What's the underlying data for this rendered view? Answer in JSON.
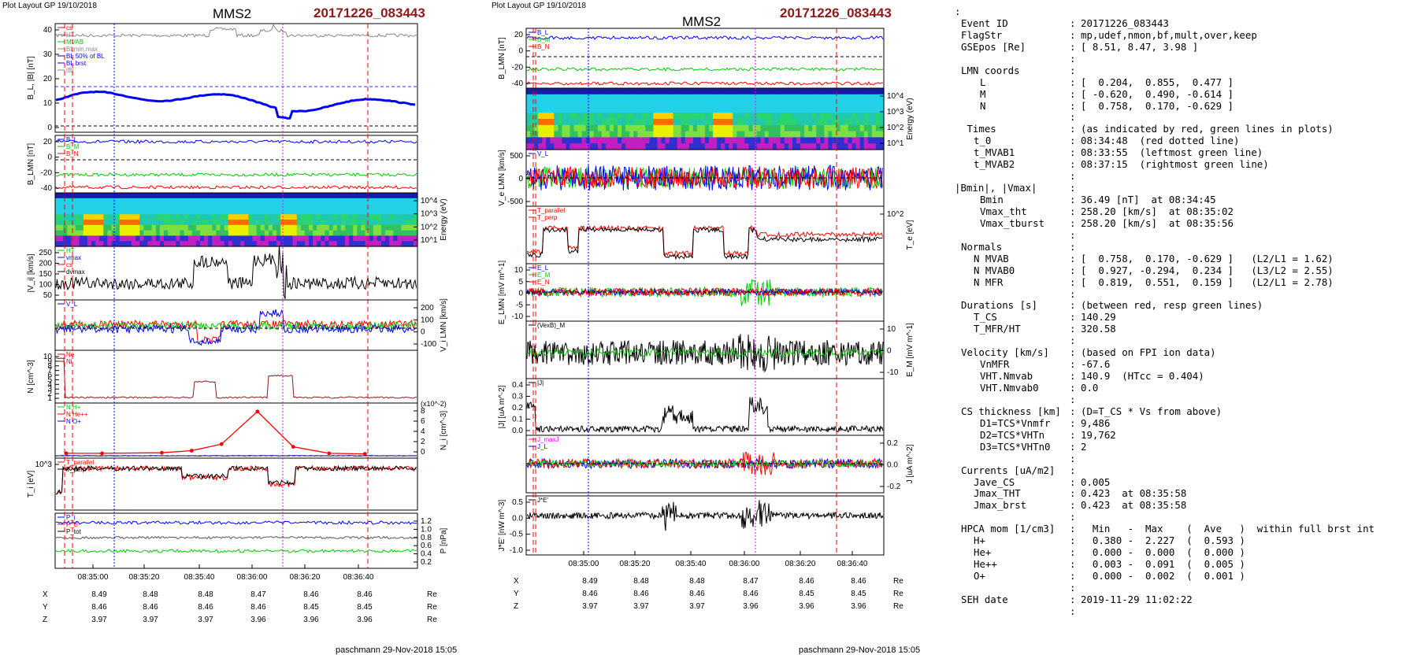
{
  "page": {
    "headers": [
      "Plot Layout GP 19/10/2018",
      "Plot Layout GP 19/10/2018"
    ],
    "spacecraft": "MMS2",
    "event_title": "20171226_083443",
    "footer": "paschmann 29-Nov-2018 15:05",
    "colors": {
      "event": "#8b1a1a",
      "red": "#ff0000",
      "green": "#00cc00",
      "blue": "#0000ff",
      "magenta": "#ff00ff",
      "grey": "#888888"
    }
  },
  "time_axis": {
    "ticks": [
      "08:35:00",
      "08:35:20",
      "08:35:40",
      "08:36:00",
      "08:36:20",
      "08:36:40"
    ],
    "orbit": {
      "labels": [
        "X",
        "Y",
        "Z"
      ],
      "unit": "Re",
      "X": [
        "8.49",
        "8.48",
        "8.48",
        "8.47",
        "8.46",
        "8.46"
      ],
      "Y": [
        "8.46",
        "8.46",
        "8.46",
        "8.46",
        "8.45",
        "8.45"
      ],
      "Z": [
        "3.97",
        "3.97",
        "3.97",
        "3.96",
        "3.96",
        "3.96"
      ]
    }
  },
  "chart_data": [
    {
      "type": "line",
      "panel": "left",
      "rows": [
        {
          "ylabel": "B_L, |B| [nT]",
          "yticks": [
            "40",
            "30",
            "20",
            "10",
            "0"
          ],
          "legend": [
            "cs",
            "HT",
            "MVAB",
            "BLmin,max",
            "BL 50% of BL",
            "BL brst",
            "|B|"
          ],
          "ylim": [
            0,
            48
          ]
        },
        {
          "ylabel": "B_LMN [nT]",
          "yticks": [
            "20",
            "0",
            "-20",
            "-40"
          ],
          "legend": [
            "B_L",
            "B_M",
            "B_N"
          ],
          "ylim": [
            -40,
            25
          ]
        },
        {
          "type": "heatmap",
          "ylabel_right": "Energy (eV)",
          "yticks_right": [
            "10^4",
            "10^3",
            "10^2",
            "10^1"
          ]
        },
        {
          "ylabel": "|V_i| [km/s]",
          "yticks": [
            "250",
            "200",
            "150",
            "100",
            "50"
          ],
          "legend": [
            "HT",
            "vmax",
            "cs",
            "dvmax"
          ]
        },
        {
          "ylabel_right": "V_i LMN [km/s]",
          "yticks_right": [
            "200",
            "100",
            "0",
            "-100"
          ],
          "legend": [
            "V_L"
          ]
        },
        {
          "ylabel": "N [cm^-3]",
          "yticks": [
            "10",
            "9",
            "8",
            "7",
            "6",
            "5",
            "4",
            "3",
            "2",
            "1"
          ],
          "legend": [
            "Ne",
            "Ni"
          ]
        },
        {
          "type": "line",
          "ylabel_right": "N_i [cm^-3]",
          "scale_note": "(x10^-2)",
          "yticks_right": [
            "8",
            "6",
            "4",
            "2",
            "0"
          ],
          "legend": [
            "N H+",
            "N He++",
            "N O+"
          ],
          "series": [
            {
              "name": "N He++",
              "x": [
                "08:34:48",
                "08:35:00",
                "08:35:20",
                "08:35:30",
                "08:35:40",
                "08:35:52",
                "08:36:04",
                "08:36:16",
                "08:36:28"
              ],
              "values": [
                0.3,
                0.3,
                0.4,
                0.8,
                2.0,
                8.0,
                1.5,
                0.3,
                0.2
              ]
            }
          ]
        },
        {
          "ylabel": "T_i [eV]",
          "yticks": [
            "10^3"
          ],
          "legend": [
            "T_parallel",
            "T_perp"
          ]
        },
        {
          "ylabel_right": "P [nPa]",
          "yticks_right": [
            "1.2",
            "1.0",
            "0.8",
            "0.6",
            "0.4",
            "0.2"
          ],
          "legend": [
            "P_i",
            "P_B",
            "P_tot"
          ]
        }
      ]
    },
    {
      "type": "line",
      "panel": "middle",
      "rows": [
        {
          "ylabel": "B_LMN [nT]",
          "yticks": [
            "20",
            "0",
            "-20",
            "-40"
          ],
          "legend": [
            "B_L",
            "B_M",
            "B_N"
          ]
        },
        {
          "type": "heatmap",
          "ylabel_right": "Energy (eV)",
          "yticks_right": [
            "10^4",
            "10^3",
            "10^2",
            "10^1"
          ]
        },
        {
          "ylabel": "V_e LMN [km/s]",
          "yticks": [
            "500",
            "0",
            "-500"
          ],
          "legend": [
            "V_L"
          ]
        },
        {
          "ylabel_right": "T_e [eV]",
          "yticks_right": [
            "10^2"
          ],
          "legend": [
            "T_parallel",
            "T_perp"
          ]
        },
        {
          "ylabel": "E_LMN [mV m^-1]",
          "yticks": [
            "10",
            "5",
            "0",
            "-5",
            "-10"
          ],
          "legend": [
            "E_L",
            "E_M",
            "E_N"
          ]
        },
        {
          "ylabel_right": "E_M [mV m^-1]",
          "yticks_right": [
            "10",
            "0",
            "-10"
          ],
          "legend": [
            "(VexB)_M"
          ]
        },
        {
          "ylabel": "|J| [uA m^-2]",
          "yticks": [
            "0.4",
            "0.3",
            "0.2",
            "0.1",
            "0.0"
          ],
          "legend": [
            "|J|"
          ]
        },
        {
          "ylabel_right": "J [uA m^-2]",
          "yticks_right": [
            "0.2",
            "0.0",
            "-0.2"
          ],
          "legend": [
            "J_maxJ",
            "J_L"
          ]
        },
        {
          "ylabel": "J*E' [nW m^-3]",
          "yticks": [
            "0.5",
            "0.0",
            "-0.5",
            "-1.0"
          ],
          "legend": [
            "J*E'"
          ]
        }
      ]
    }
  ],
  "info": {
    "lines": [
      {
        "k": ":",
        "v": "",
        "indent": "none"
      },
      {
        "k": "Event ID",
        "v": "20171226_083443",
        "indent": "sec"
      },
      {
        "k": "FlagStr",
        "v": "mp,udef,nmon,bf,mult,over,keep",
        "indent": "sec"
      },
      {
        "k": "GSEpos [Re]",
        "v": "[ 8.51, 8.47, 3.98 ]",
        "indent": "sec"
      },
      {
        "k": "",
        "v": "",
        "indent": "sec"
      },
      {
        "k": "LMN coords",
        "v": "",
        "indent": "sec"
      },
      {
        "k": "L",
        "v": "[  0.204,  0.855,  0.477 ]",
        "indent": "sub"
      },
      {
        "k": "M",
        "v": "[ -0.620,  0.490, -0.614 ]",
        "indent": "sub"
      },
      {
        "k": "N",
        "v": "[  0.758,  0.170, -0.629 ]",
        "indent": "sub"
      },
      {
        "k": "",
        "v": "",
        "indent": "sec"
      },
      {
        "k": " Times",
        "v": "(as indicated by red, green lines in plots)",
        "indent": "sec"
      },
      {
        "k": "t_0",
        "v": "08:34:48  (red dotted line)",
        "indent": "sub2"
      },
      {
        "k": "t_MVAB1",
        "v": "08:33:55  (leftmost green line)",
        "indent": "sub2"
      },
      {
        "k": "t_MVAB2",
        "v": "08:37:15  (rightmost green line)",
        "indent": "sub2"
      },
      {
        "k": "",
        "v": "",
        "indent": "sec"
      },
      {
        "k": "|Bmin|, |Vmax|",
        "v": "",
        "indent": "none"
      },
      {
        "k": "Bmin",
        "v": "36.49 [nT]  at 08:34:45",
        "indent": "sub"
      },
      {
        "k": "Vmax_tht",
        "v": "258.20 [km/s]  at 08:35:02",
        "indent": "sub"
      },
      {
        "k": "Vmax_tburst",
        "v": "258.20 [km/s]  at 08:35:56",
        "indent": "sub"
      },
      {
        "k": "",
        "v": "",
        "indent": "sec"
      },
      {
        "k": "Normals",
        "v": "",
        "indent": "sec"
      },
      {
        "k": "N MVAB",
        "v": "[  0.758,  0.170, -0.629 ]   (L2/L1 = 1.62)",
        "indent": "sub2"
      },
      {
        "k": "N MVAB0",
        "v": "[  0.927, -0.294,  0.234 ]   (L3/L2 = 2.55)",
        "indent": "sub2"
      },
      {
        "k": "N MFR",
        "v": "[  0.819,  0.551,  0.159 ]   (L2/L1 = 2.78)",
        "indent": "sub2"
      },
      {
        "k": "",
        "v": "",
        "indent": "sec"
      },
      {
        "k": "Durations [s]",
        "v": "(between red, resp green lines)",
        "indent": "sec"
      },
      {
        "k": "T_CS",
        "v": "140.29",
        "indent": "sub2"
      },
      {
        "k": "T_MFR/HT",
        "v": "320.58",
        "indent": "sub2"
      },
      {
        "k": "",
        "v": "",
        "indent": "sec"
      },
      {
        "k": "Velocity [km/s]",
        "v": "(based on FPI ion data)",
        "indent": "sec"
      },
      {
        "k": "VnMFR",
        "v": "-67.6",
        "indent": "sub"
      },
      {
        "k": "VHT.Nmvab",
        "v": "140.9  (HTcc = 0.404)",
        "indent": "sub"
      },
      {
        "k": "VHT.Nmvab0",
        "v": "0.0",
        "indent": "sub"
      },
      {
        "k": "",
        "v": "",
        "indent": "sec"
      },
      {
        "k": "CS thickness [km]",
        "v": "(D=T_CS * Vs from above)",
        "indent": "sec"
      },
      {
        "k": "D1=TCS*Vnmfr",
        "v": "9,486",
        "indent": "sub"
      },
      {
        "k": "D2=TCS*VHTn",
        "v": "19,762",
        "indent": "sub"
      },
      {
        "k": "D3=TCS*VHTn0",
        "v": "2",
        "indent": "sub"
      },
      {
        "k": "",
        "v": "",
        "indent": "sec"
      },
      {
        "k": "Currents [uA/m2]",
        "v": "",
        "indent": "sec"
      },
      {
        "k": "Jave_CS",
        "v": "0.005",
        "indent": "sub2"
      },
      {
        "k": "Jmax_THT",
        "v": "0.423  at 08:35:58",
        "indent": "sub2"
      },
      {
        "k": "Jmax_brst",
        "v": "0.423  at 08:35:58",
        "indent": "sub2"
      },
      {
        "k": "",
        "v": "",
        "indent": "sec"
      },
      {
        "k": "HPCA mom [1/cm3]",
        "v": "  Min   -  Max    (  Ave   )  within full brst int",
        "indent": "sec"
      },
      {
        "k": "H+",
        "v": "  0.380 -  2.227  (  0.593 )",
        "indent": "sub2"
      },
      {
        "k": "He+",
        "v": "  0.000 -  0.000  (  0.000 )",
        "indent": "sub2"
      },
      {
        "k": "He++",
        "v": "  0.003 -  0.091  (  0.005 )",
        "indent": "sub2"
      },
      {
        "k": "O+",
        "v": "  0.000 -  0.002  (  0.001 )",
        "indent": "sub2"
      },
      {
        "k": "",
        "v": "",
        "indent": "sec"
      },
      {
        "k": "SEH date",
        "v": "2019-11-29 11:02:22",
        "indent": "sec"
      },
      {
        "k": "",
        "v": "",
        "indent": "sec"
      }
    ]
  }
}
